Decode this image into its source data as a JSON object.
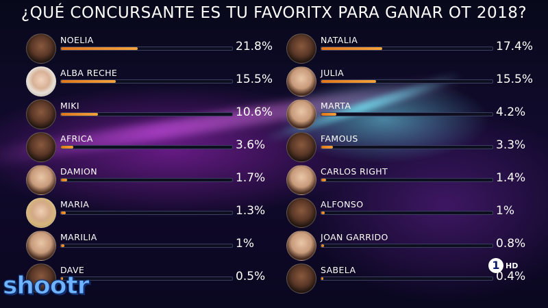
{
  "title": "¿QUÉ CONCURSANTE ES TU FAVORITX PARA GANAR OT 2018?",
  "left": [
    {
      "name": "NOELIA",
      "percent": "21.8%",
      "value": 21.8
    },
    {
      "name": "ALBA RECHE",
      "percent": "15.5%",
      "value": 15.5
    },
    {
      "name": "MIKI",
      "percent": "10.6%",
      "value": 10.6
    },
    {
      "name": "AFRICA",
      "percent": "3.6%",
      "value": 3.6
    },
    {
      "name": "DAMION",
      "percent": "1.7%",
      "value": 1.7
    },
    {
      "name": "MARIA",
      "percent": "1.3%",
      "value": 1.3
    },
    {
      "name": "MARILIA",
      "percent": "1%",
      "value": 1.0
    },
    {
      "name": "DAVE",
      "percent": "0.5%",
      "value": 0.5
    }
  ],
  "right": [
    {
      "name": "NATALIA",
      "percent": "17.4%",
      "value": 17.4
    },
    {
      "name": "JULIA",
      "percent": "15.5%",
      "value": 15.5
    },
    {
      "name": "MARTA",
      "percent": "4.2%",
      "value": 4.2
    },
    {
      "name": "FAMOUS",
      "percent": "3.3%",
      "value": 3.3
    },
    {
      "name": "CARLOS RIGHT",
      "percent": "1.4%",
      "value": 1.4
    },
    {
      "name": "ALFONSO",
      "percent": "1%",
      "value": 1.0
    },
    {
      "name": "JOAN GARRIDO",
      "percent": "0.8%",
      "value": 0.8
    },
    {
      "name": "SABELA",
      "percent": "0.4%",
      "value": 0.4
    }
  ],
  "watermark": "shootr",
  "channel": {
    "number": "1",
    "hd": "HD"
  }
}
